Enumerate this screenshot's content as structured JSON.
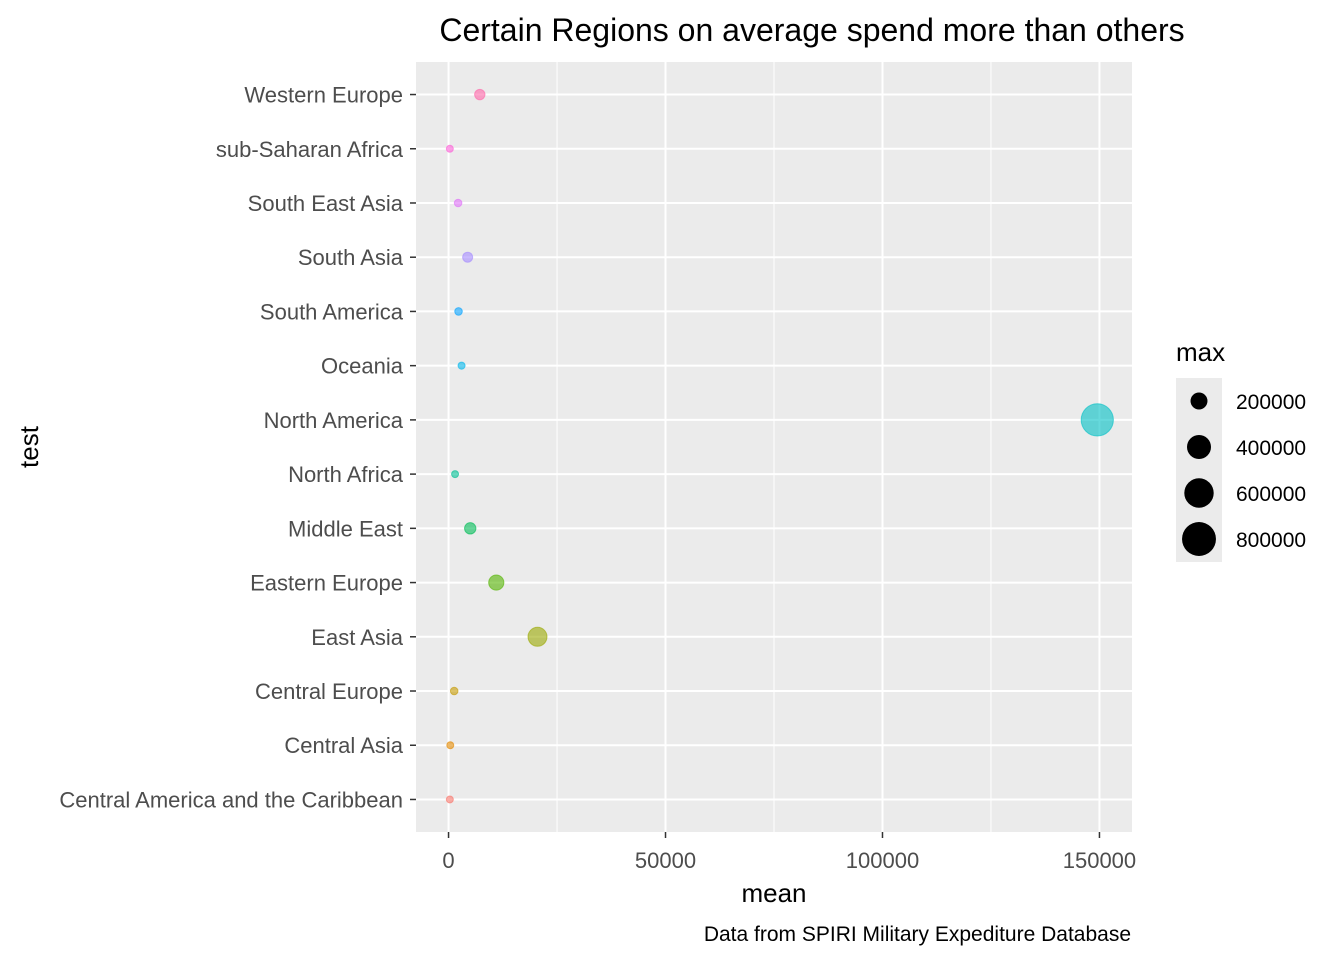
{
  "chart_data": {
    "type": "scatter",
    "title": "Certain Regions on average spend more than others",
    "xlabel": "mean",
    "ylabel": "test",
    "caption": "Data from SPIRI Military Expediture Database",
    "xlim": [
      -7500,
      157500
    ],
    "xticks": [
      0,
      50000,
      100000,
      150000
    ],
    "xtick_labels": [
      "0",
      "50000",
      "100000",
      "150000"
    ],
    "x_minor_gridlines": [
      25000,
      75000,
      125000
    ],
    "grid": true,
    "panel_background": "#ebebeb",
    "gridline_color": "#ffffff",
    "point_alpha": 0.6,
    "categories": [
      "Central America and the Caribbean",
      "Central Asia",
      "Central Europe",
      "East Asia",
      "Eastern Europe",
      "Middle East",
      "North Africa",
      "North America",
      "Oceania",
      "South America",
      "South Asia",
      "South East Asia",
      "sub-Saharan Africa",
      "Western Europe"
    ],
    "points": [
      {
        "region": "Central America and the Caribbean",
        "mean": 300,
        "max": 15000,
        "color": "#F8766D"
      },
      {
        "region": "Central Asia",
        "mean": 400,
        "max": 5000,
        "color": "#E38900"
      },
      {
        "region": "Central Europe",
        "mean": 1300,
        "max": 40000,
        "color": "#C49A00"
      },
      {
        "region": "East Asia",
        "mean": 20500,
        "max": 250000,
        "color": "#99A800"
      },
      {
        "region": "Eastern Europe",
        "mean": 11000,
        "max": 160000,
        "color": "#53B400"
      },
      {
        "region": "Middle East",
        "mean": 5000,
        "max": 90000,
        "color": "#00BC56"
      },
      {
        "region": "North Africa",
        "mean": 1500,
        "max": 20000,
        "color": "#00C094"
      },
      {
        "region": "North America",
        "mean": 149500,
        "max": 720000,
        "color": "#00BFC4"
      },
      {
        "region": "Oceania",
        "mean": 3000,
        "max": 35000,
        "color": "#00B6EB"
      },
      {
        "region": "South America",
        "mean": 2300,
        "max": 40000,
        "color": "#06A4FF"
      },
      {
        "region": "South Asia",
        "mean": 4400,
        "max": 70000,
        "color": "#A58AFF"
      },
      {
        "region": "South East Asia",
        "mean": 2200,
        "max": 40000,
        "color": "#DF70F8"
      },
      {
        "region": "sub-Saharan Africa",
        "mean": 300,
        "max": 15000,
        "color": "#FB61D7"
      },
      {
        "region": "Western Europe",
        "mean": 7200,
        "max": 75000,
        "color": "#FF66A8"
      }
    ],
    "legend": {
      "title": "max",
      "placement": "right",
      "background": "#ebebeb",
      "entries": [
        {
          "label": "200000",
          "value": 200000
        },
        {
          "label": "400000",
          "value": 400000
        },
        {
          "label": "600000",
          "value": 600000
        },
        {
          "label": "800000",
          "value": 800000
        }
      ]
    }
  }
}
